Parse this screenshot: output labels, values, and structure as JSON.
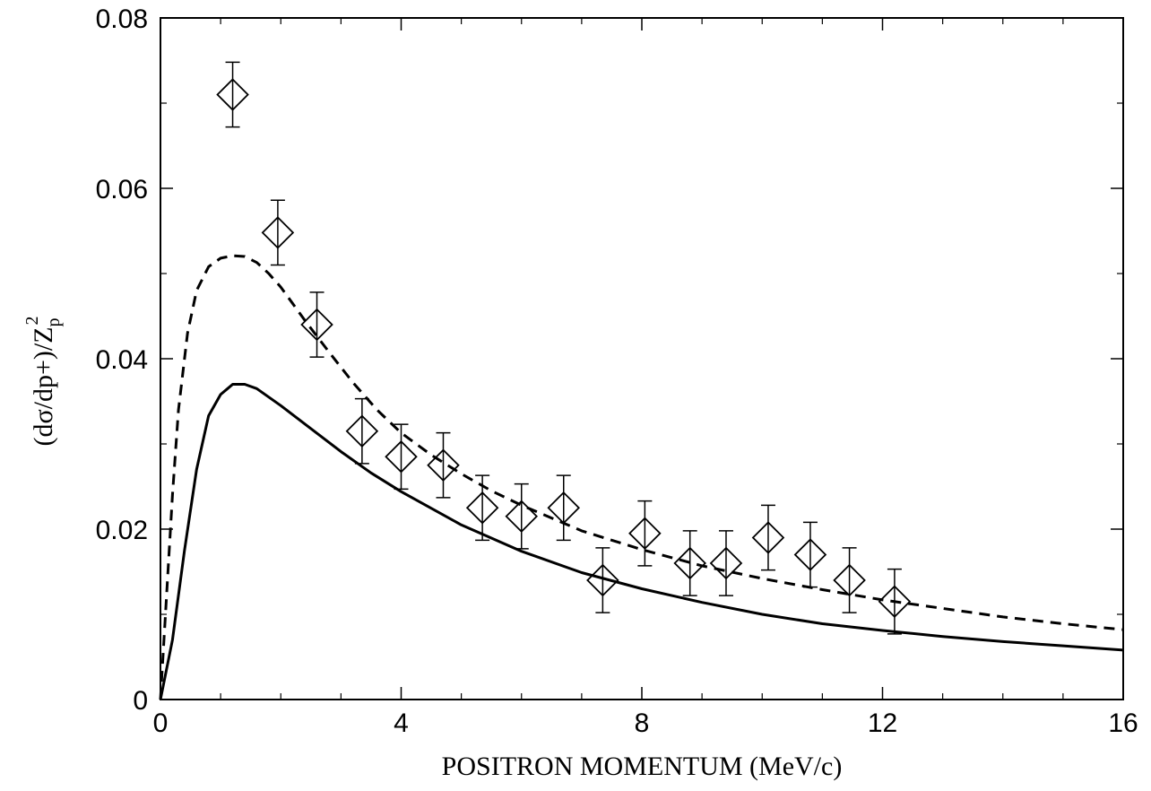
{
  "chart_data": {
    "type": "scatter",
    "xlabel": "POSITRON MOMENTUM (MeV/c)",
    "ylabel": {
      "main": "(dσ/dp+)/Z",
      "sub": "p",
      "sup": "2"
    },
    "xlim": [
      0,
      16
    ],
    "ylim": [
      0,
      0.08
    ],
    "x_ticks": [
      0,
      4,
      8,
      12,
      16
    ],
    "x_tick_labels": [
      "0",
      "4",
      "8",
      "12",
      "16"
    ],
    "y_ticks": [
      0,
      0.02,
      0.04,
      0.06,
      0.08
    ],
    "y_tick_labels": [
      "0",
      "0.02",
      "0.04",
      "0.06",
      "0.08"
    ],
    "x_minor_step": 1,
    "y_minor_step": 0.01,
    "grid": false,
    "series": [
      {
        "kind": "points",
        "marker": "diamond",
        "color": "#000000",
        "points": [
          {
            "x": 1.2,
            "y": 0.071,
            "err": 0.0038
          },
          {
            "x": 1.95,
            "y": 0.0548,
            "err": 0.0038
          },
          {
            "x": 2.6,
            "y": 0.044,
            "err": 0.0038
          },
          {
            "x": 3.35,
            "y": 0.0315,
            "err": 0.0038
          },
          {
            "x": 4.0,
            "y": 0.0285,
            "err": 0.0038
          },
          {
            "x": 4.7,
            "y": 0.0275,
            "err": 0.0038
          },
          {
            "x": 5.35,
            "y": 0.0225,
            "err": 0.0038
          },
          {
            "x": 6.0,
            "y": 0.0215,
            "err": 0.0038
          },
          {
            "x": 6.7,
            "y": 0.0225,
            "err": 0.0038
          },
          {
            "x": 7.35,
            "y": 0.014,
            "err": 0.0038
          },
          {
            "x": 8.05,
            "y": 0.0195,
            "err": 0.0038
          },
          {
            "x": 8.8,
            "y": 0.016,
            "err": 0.0038
          },
          {
            "x": 9.4,
            "y": 0.016,
            "err": 0.0038
          },
          {
            "x": 10.1,
            "y": 0.019,
            "err": 0.0038
          },
          {
            "x": 10.8,
            "y": 0.017,
            "err": 0.0038
          },
          {
            "x": 11.45,
            "y": 0.014,
            "err": 0.0038
          },
          {
            "x": 12.2,
            "y": 0.0115,
            "err": 0.0038
          }
        ]
      },
      {
        "kind": "line",
        "style": "dashed",
        "color": "#000000",
        "x": [
          0,
          0.1,
          0.2,
          0.3,
          0.45,
          0.6,
          0.8,
          1.0,
          1.2,
          1.4,
          1.6,
          1.8,
          2.0,
          2.4,
          2.8,
          3.2,
          3.6,
          4.0,
          4.5,
          5.0,
          5.5,
          6.0,
          7.0,
          8.0,
          9.0,
          10.0,
          11.0,
          12.0,
          13.0,
          14.0,
          15.0,
          16.0
        ],
        "y": [
          0,
          0.012,
          0.024,
          0.034,
          0.043,
          0.048,
          0.0508,
          0.0518,
          0.0521,
          0.052,
          0.0513,
          0.05,
          0.0484,
          0.0445,
          0.0408,
          0.0372,
          0.034,
          0.0313,
          0.0287,
          0.0265,
          0.0245,
          0.0228,
          0.0198,
          0.0176,
          0.0157,
          0.0142,
          0.0129,
          0.0117,
          0.0107,
          0.0097,
          0.0089,
          0.0082
        ]
      },
      {
        "kind": "line",
        "style": "solid",
        "color": "#000000",
        "x": [
          0,
          0.2,
          0.4,
          0.6,
          0.8,
          1.0,
          1.2,
          1.4,
          1.6,
          2.0,
          2.5,
          3.0,
          3.5,
          4.0,
          5.0,
          6.0,
          7.0,
          8.0,
          9.0,
          10.0,
          11.0,
          12.0,
          13.0,
          14.0,
          15.0,
          16.0
        ],
        "y": [
          0,
          0.007,
          0.0175,
          0.027,
          0.0333,
          0.0358,
          0.037,
          0.037,
          0.0365,
          0.0345,
          0.0318,
          0.0291,
          0.0266,
          0.0244,
          0.0205,
          0.0174,
          0.0149,
          0.013,
          0.0114,
          0.01,
          0.0089,
          0.0081,
          0.0074,
          0.0068,
          0.0063,
          0.0058
        ]
      }
    ]
  }
}
